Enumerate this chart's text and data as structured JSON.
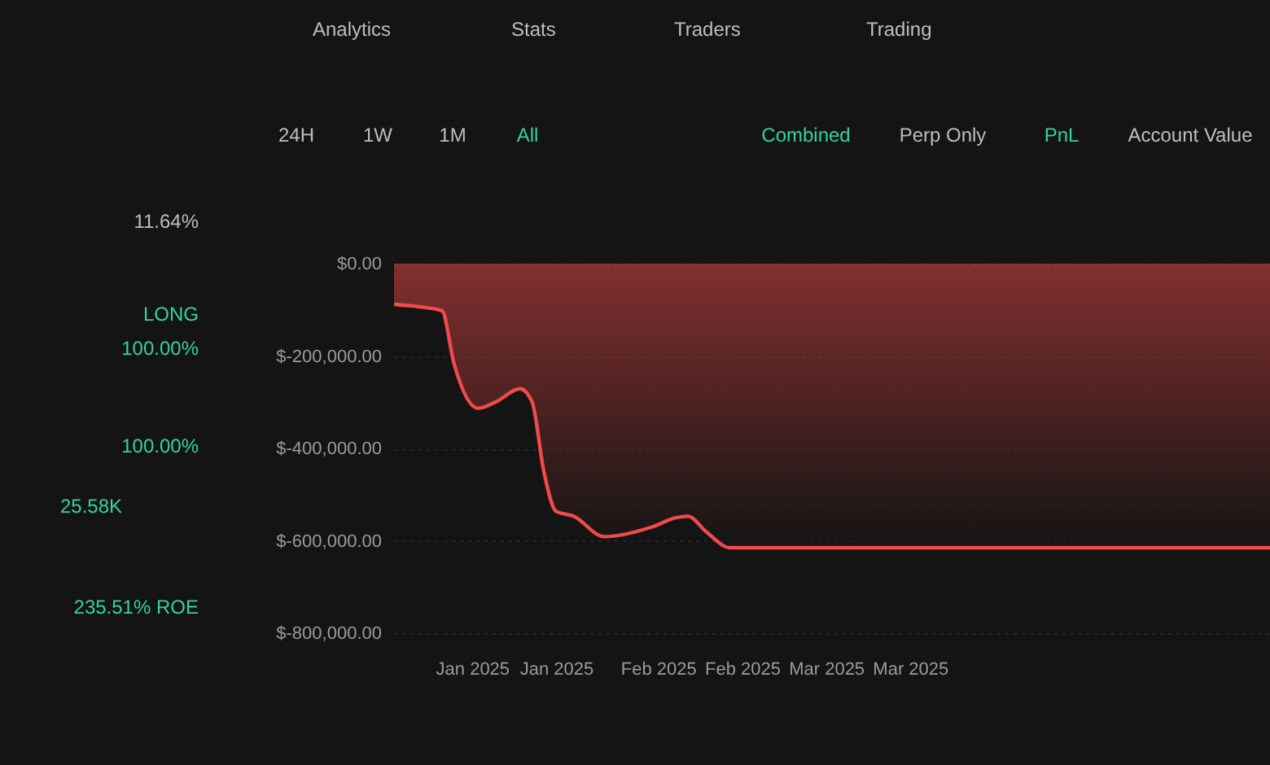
{
  "chart_data": {
    "type": "area",
    "x": [
      "2024-12-19",
      "2024-12-23",
      "2024-12-27",
      "2024-12-29",
      "2025-01-02",
      "2025-01-05",
      "2025-01-09",
      "2025-01-11",
      "2025-01-13",
      "2025-01-15",
      "2025-01-18",
      "2025-01-23",
      "2025-01-31",
      "2025-02-04",
      "2025-02-06",
      "2025-02-09",
      "2025-02-13",
      "2025-05-14"
    ],
    "series": [
      {
        "color": "#f04a4a",
        "values": [
          -88000,
          -93000,
          -102000,
          -216000,
          -313000,
          -299000,
          -271000,
          -299000,
          -452000,
          -536000,
          -547000,
          -591000,
          -570000,
          -550000,
          -547000,
          -580000,
          -615000,
          -615000
        ]
      }
    ],
    "xlim": [
      "2024-12-19",
      "2025-05-14"
    ],
    "xticks": [
      {
        "value": "2025-01-01",
        "label": "Jan 2025"
      },
      {
        "value": "2025-01-15",
        "label": "Jan 2025"
      },
      {
        "value": "2025-02-01",
        "label": "Feb 2025"
      },
      {
        "value": "2025-02-15",
        "label": "Feb 2025"
      },
      {
        "value": "2025-03-01",
        "label": "Mar 2025"
      },
      {
        "value": "2025-03-15",
        "label": "Mar 2025"
      }
    ],
    "ylim": [
      -800000,
      0
    ],
    "yticks": [
      {
        "value": 0,
        "label": "$0.00"
      },
      {
        "value": -200000,
        "label": "$-200,000.00"
      },
      {
        "value": -400000,
        "label": "$-400,000.00"
      },
      {
        "value": -600000,
        "label": "$-600,000.00"
      },
      {
        "value": -800000,
        "label": "$-800,000.00"
      }
    ],
    "grid": "y",
    "marker": "none",
    "line_style": "solid",
    "annotations": [
      "Analytics",
      "Stats",
      "Traders",
      "Trading",
      "24H",
      "1W",
      "1M",
      "All",
      "Combined",
      "Perp Only",
      "PnL",
      "Account Value",
      "11.64%",
      "LONG",
      "100.00%",
      "100.00%",
      "25.58K",
      "235.51% ROE"
    ]
  }
}
